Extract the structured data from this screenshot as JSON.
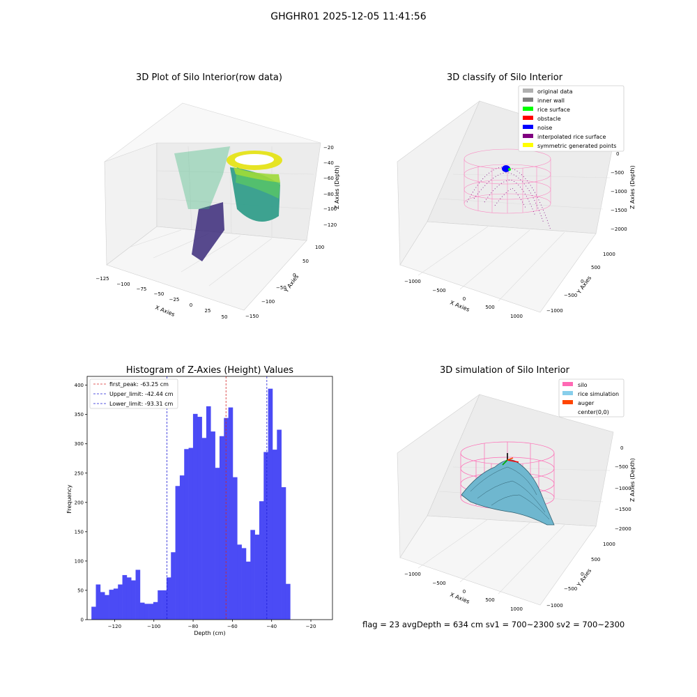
{
  "figure_title": "GHGHR01 2025-12-05 11:41:56",
  "status_line": "flag = 23   avgDepth = 634 cm  sv1 = 700~2300  sv2 = 700~2300",
  "colors": {
    "histogram_bar": "#4b4bf5",
    "first_peak_line": "#d62728",
    "limit_line": "#1f1fd6",
    "silo": "#ff69b4",
    "rice_simulation": "#87ceeb",
    "auger": "#ff4500",
    "original_data": "#b0b0b0",
    "inner_wall": "#808080",
    "rice_surface": "#00ff00",
    "obstacle": "#ff0000",
    "noise": "#0000ff",
    "interpolated_rice_surface": "#800080",
    "symmetric_generated_points": "#ffff00"
  },
  "chart_data": [
    {
      "type": "scatter",
      "title": "3D Plot of Silo Interior(row data)",
      "xlabel": "X Axies",
      "ylabel": "Y Axies",
      "zlabel": "Z Axies (Depth)",
      "x_ticks": [
        "−125",
        "−100",
        "−75",
        "−50",
        "−25",
        "0",
        "25",
        "50"
      ],
      "y_ticks": [
        "100",
        "50",
        "0",
        "−50",
        "−100",
        "−150"
      ],
      "z_ticks": [
        "−20",
        "−40",
        "−60",
        "−80",
        "−100",
        "−120"
      ],
      "colormap": "viridis"
    },
    {
      "type": "scatter",
      "title": "3D classify of Silo Interior",
      "xlabel": "X Axies",
      "ylabel": "Y Axies",
      "zlabel": "Z Axies (Depth)",
      "x_ticks": [
        "−1000",
        "−500",
        "0",
        "500",
        "1000"
      ],
      "y_ticks": [
        "1000",
        "500",
        "0",
        "−500",
        "−1000"
      ],
      "z_ticks": [
        "0",
        "−500",
        "−1000",
        "−1500",
        "−2000"
      ],
      "legend_position": "top-right",
      "legend": [
        {
          "label": "original data",
          "color": "#b0b0b0"
        },
        {
          "label": "inner wall",
          "color": "#808080"
        },
        {
          "label": "rice surface",
          "color": "#00ff00"
        },
        {
          "label": "obstacle",
          "color": "#ff0000"
        },
        {
          "label": "noise",
          "color": "#0000ff"
        },
        {
          "label": "interpolated rice surface",
          "color": "#800080"
        },
        {
          "label": "symmetric generated points",
          "color": "#ffff00"
        }
      ]
    },
    {
      "type": "bar",
      "title": "Histogram of Z-Axies (Height) Values",
      "xlabel": "Depth (cm)",
      "ylabel": "Frequency",
      "xlim": [
        -134,
        -9
      ],
      "ylim": [
        0,
        415
      ],
      "x_ticks": [
        -120,
        -100,
        -80,
        -60,
        -40,
        -20
      ],
      "y_ticks": [
        0,
        50,
        100,
        150,
        200,
        250,
        300,
        350,
        400
      ],
      "bin_start": -131.8,
      "bin_width": 2.25,
      "values": [
        22,
        60,
        47,
        42,
        51,
        53,
        60,
        76,
        72,
        67,
        85,
        29,
        27,
        27,
        30,
        50,
        50,
        72,
        115,
        228,
        246,
        291,
        293,
        351,
        346,
        310,
        364,
        321,
        259,
        313,
        344,
        362,
        243,
        128,
        122,
        99,
        153,
        145,
        202,
        286,
        394,
        290,
        324,
        226,
        61
      ],
      "vlines": [
        {
          "label": "first_peak: -63.25 cm",
          "x": -63.25,
          "color": "#d62728"
        },
        {
          "label": "Upper_limit: -42.44 cm",
          "x": -42.44,
          "color": "#1f1fd6"
        },
        {
          "label": "Lower_limit: -93.31 cm",
          "x": -93.31,
          "color": "#1f1fd6"
        }
      ],
      "legend_position": "top-left"
    },
    {
      "type": "surface",
      "title": "3D simulation of Silo Interior",
      "xlabel": "X Axies",
      "ylabel": "Y Axies",
      "zlabel": "Z Axies (Depth)",
      "x_ticks": [
        "−1000",
        "−500",
        "0",
        "500",
        "1000"
      ],
      "y_ticks": [
        "1000",
        "500",
        "0",
        "−500",
        "−1000"
      ],
      "z_ticks": [
        "0",
        "−500",
        "−1000",
        "−1500",
        "−2000"
      ],
      "legend_position": "top-right",
      "legend": [
        {
          "label": "silo",
          "color": "#ff69b4"
        },
        {
          "label": "rice simulation",
          "color": "#87ceeb"
        },
        {
          "label": "auger",
          "color": "#ff4500"
        },
        {
          "label": "center(0,0)",
          "color": "#ffffff"
        }
      ]
    }
  ]
}
